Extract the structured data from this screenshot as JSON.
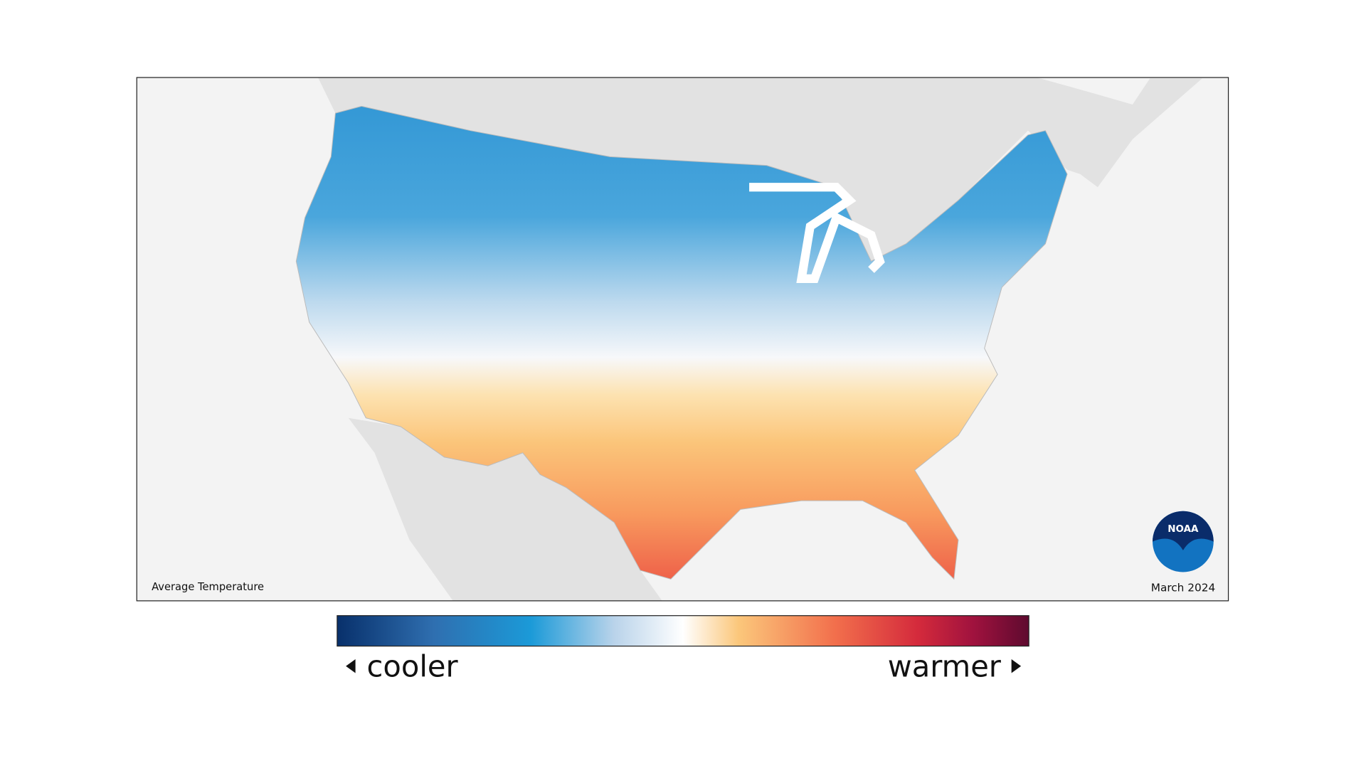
{
  "map": {
    "caption": "Average Temperature",
    "date": "March 2024",
    "logo": "NOAA"
  },
  "legend": {
    "low": "cooler",
    "high": "warmer"
  }
}
